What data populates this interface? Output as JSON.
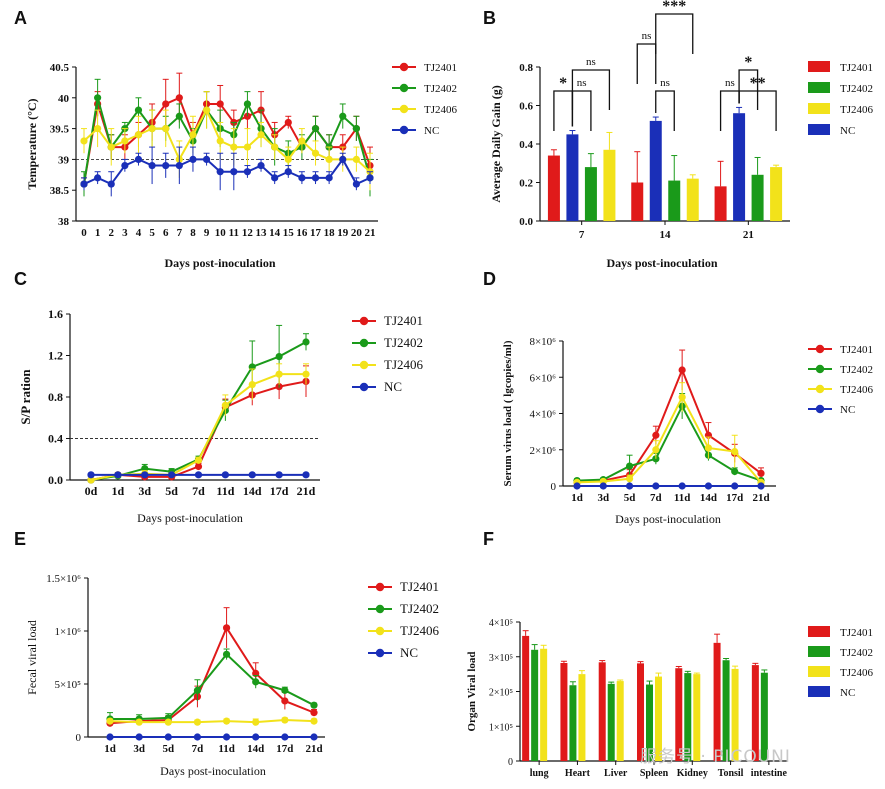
{
  "colors": {
    "TJ2401": "#e01a1a",
    "TJ2402": "#1a9a1a",
    "TJ2406": "#f2e21a",
    "NC": "#1a2fb8"
  },
  "watermark": "服务号 · PICOUNI",
  "chart_data": [
    {
      "id": "A",
      "panel_label": "A",
      "type": "line",
      "xlabel": "Days post-inoculation",
      "ylabel": "Temperature (°C)",
      "ylim": [
        38.0,
        40.5
      ],
      "yticks": [
        38.0,
        38.5,
        39.0,
        39.5,
        40.0,
        40.5
      ],
      "categories": [
        "0",
        "1",
        "2",
        "3",
        "4",
        "5",
        "6",
        "7",
        "8",
        "9",
        "10",
        "11",
        "12",
        "13",
        "14",
        "15",
        "16",
        "17",
        "18",
        "19",
        "20",
        "21"
      ],
      "threshold": 39.0,
      "legend": "right",
      "series": [
        {
          "name": "TJ2401",
          "values": [
            38.6,
            39.9,
            39.2,
            39.2,
            39.4,
            39.6,
            39.9,
            40.0,
            39.4,
            39.9,
            39.9,
            39.6,
            39.7,
            39.8,
            39.4,
            39.6,
            39.2,
            39.5,
            39.2,
            39.2,
            39.5,
            38.9
          ],
          "errors": [
            0.1,
            0.2,
            0.2,
            0.2,
            0.2,
            0.3,
            0.4,
            0.4,
            0.2,
            0.2,
            0.3,
            0.2,
            0.2,
            0.3,
            0.2,
            0.1,
            0.1,
            0.2,
            0.2,
            0.2,
            0.2,
            0.3
          ]
        },
        {
          "name": "TJ2402",
          "values": [
            38.6,
            40.0,
            39.2,
            39.5,
            39.8,
            39.5,
            39.5,
            39.7,
            39.3,
            39.8,
            39.5,
            39.4,
            39.9,
            39.5,
            39.2,
            39.1,
            39.2,
            39.5,
            39.2,
            39.7,
            39.5,
            38.7
          ],
          "errors": [
            0.2,
            0.3,
            0.2,
            0.1,
            0.2,
            0.3,
            0.2,
            0.2,
            0.2,
            0.3,
            0.3,
            0.2,
            0.2,
            0.3,
            0.3,
            0.2,
            0.2,
            0.2,
            0.2,
            0.2,
            0.2,
            0.3
          ]
        },
        {
          "name": "TJ2406",
          "values": [
            39.3,
            39.5,
            39.2,
            39.3,
            39.4,
            39.5,
            39.5,
            39.0,
            39.4,
            39.8,
            39.3,
            39.2,
            39.2,
            39.4,
            39.2,
            39.0,
            39.3,
            39.1,
            39.0,
            39.0,
            39.0,
            38.8
          ],
          "errors": [
            0.2,
            0.3,
            0.3,
            0.2,
            0.3,
            0.3,
            0.3,
            0.3,
            0.3,
            0.3,
            0.3,
            0.3,
            0.3,
            0.2,
            0.2,
            0.2,
            0.2,
            0.2,
            0.2,
            0.2,
            0.2,
            0.3
          ]
        },
        {
          "name": "NC",
          "values": [
            38.6,
            38.7,
            38.6,
            38.9,
            39.0,
            38.9,
            38.9,
            38.9,
            39.0,
            39.0,
            38.8,
            38.8,
            38.8,
            38.9,
            38.7,
            38.8,
            38.7,
            38.7,
            38.7,
            39.0,
            38.6,
            38.7
          ],
          "errors": [
            0.1,
            0.1,
            0.2,
            0.1,
            0.1,
            0.3,
            0.2,
            0.3,
            0.2,
            0.1,
            0.3,
            0.3,
            0.1,
            0.1,
            0.1,
            0.1,
            0.1,
            0.1,
            0.1,
            0.1,
            0.1,
            0.1
          ]
        }
      ]
    },
    {
      "id": "B",
      "panel_label": "B",
      "type": "bar",
      "xlabel": "Days post-inoculation",
      "ylabel": "Average Daily Gain (g)",
      "ylim": [
        0,
        0.8
      ],
      "yticks": [
        0.0,
        0.2,
        0.4,
        0.6,
        0.8
      ],
      "categories": [
        "7",
        "14",
        "21"
      ],
      "legend": "right",
      "series": [
        {
          "name": "TJ2401",
          "values": [
            0.34,
            0.2,
            0.18
          ],
          "errors": [
            0.03,
            0.16,
            0.13
          ]
        },
        {
          "name": "NC",
          "values": [
            0.45,
            0.52,
            0.56
          ],
          "errors": [
            0.02,
            0.02,
            0.03
          ]
        },
        {
          "name": "TJ2402",
          "values": [
            0.28,
            0.21,
            0.24
          ],
          "errors": [
            0.07,
            0.13,
            0.09
          ]
        },
        {
          "name": "TJ2406",
          "values": [
            0.37,
            0.22,
            0.28
          ],
          "errors": [
            0.09,
            0.02,
            0.01
          ]
        }
      ],
      "legend_order": [
        "TJ2401",
        "TJ2402",
        "TJ2406",
        "NC"
      ],
      "significance": [
        {
          "group": 0,
          "a": 0,
          "b": 1,
          "label": "*",
          "level": 0
        },
        {
          "group": 0,
          "a": 1,
          "b": 2,
          "label": "ns",
          "level": 0
        },
        {
          "group": 0,
          "a": 1,
          "b": 3,
          "label": "ns",
          "level": 1
        },
        {
          "group": 1,
          "a": 0,
          "b": 1,
          "label": "ns",
          "level": 2
        },
        {
          "group": 1,
          "a": 1,
          "b": 2,
          "label": "ns",
          "level": 0
        },
        {
          "group": 1,
          "a": 1,
          "b": 3,
          "label": "***",
          "level": 3
        },
        {
          "group": 2,
          "a": 0,
          "b": 1,
          "label": "ns",
          "level": 0
        },
        {
          "group": 2,
          "a": 1,
          "b": 2,
          "label": "*",
          "level": 1
        },
        {
          "group": 2,
          "a": 1,
          "b": 3,
          "label": "**",
          "level": 0
        }
      ]
    },
    {
      "id": "C",
      "panel_label": "C",
      "type": "line",
      "xlabel": "Days post-inoculation",
      "ylabel": "S/P ration",
      "ylim": [
        0,
        1.6
      ],
      "yticks": [
        0.0,
        0.4,
        0.8,
        1.2,
        1.6
      ],
      "categories": [
        "0d",
        "1d",
        "3d",
        "5d",
        "7d",
        "11d",
        "14d",
        "17d",
        "21d"
      ],
      "threshold": 0.4,
      "legend": "right",
      "series": [
        {
          "name": "TJ2401",
          "values": [
            0.0,
            0.05,
            0.03,
            0.03,
            0.13,
            0.7,
            0.82,
            0.9,
            0.95
          ],
          "errors": [
            0.01,
            0.02,
            0.02,
            0.02,
            0.03,
            0.08,
            0.1,
            0.12,
            0.15
          ]
        },
        {
          "name": "TJ2402",
          "values": [
            0.0,
            0.04,
            0.11,
            0.08,
            0.2,
            0.67,
            1.09,
            1.19,
            1.33
          ],
          "errors": [
            0.01,
            0.02,
            0.04,
            0.03,
            0.03,
            0.1,
            0.25,
            0.3,
            0.08
          ]
        },
        {
          "name": "TJ2406",
          "values": [
            0.0,
            0.05,
            0.06,
            0.05,
            0.19,
            0.72,
            0.92,
            1.02,
            1.02
          ],
          "errors": [
            0.01,
            0.02,
            0.03,
            0.02,
            0.03,
            0.1,
            0.15,
            0.1,
            0.1
          ]
        },
        {
          "name": "NC",
          "values": [
            0.05,
            0.05,
            0.05,
            0.05,
            0.05,
            0.05,
            0.05,
            0.05,
            0.05
          ],
          "errors": [
            0,
            0,
            0,
            0,
            0,
            0,
            0,
            0,
            0
          ]
        }
      ]
    },
    {
      "id": "D",
      "panel_label": "D",
      "type": "line",
      "xlabel": "Days post-inoculation",
      "ylabel": "Serum virus load ( lgcopies/ml)",
      "ylim": [
        0,
        8000000
      ],
      "yticks": [
        0,
        2000000,
        4000000,
        6000000,
        8000000
      ],
      "ytick_labels": [
        "0",
        "2×10⁶",
        "4×10⁶",
        "6×10⁶",
        "8×10⁶"
      ],
      "categories": [
        "1d",
        "3d",
        "5d",
        "7d",
        "11d",
        "14d",
        "17d",
        "21d"
      ],
      "legend": "right",
      "series": [
        {
          "name": "TJ2401",
          "values": [
            200000,
            300000,
            600000,
            2800000,
            6400000,
            2800000,
            1800000,
            700000
          ],
          "errors": [
            100000,
            100000,
            300000,
            500000,
            1100000,
            700000,
            500000,
            300000
          ]
        },
        {
          "name": "TJ2402",
          "values": [
            300000,
            350000,
            1100000,
            1500000,
            4400000,
            1700000,
            800000,
            300000
          ],
          "errors": [
            100000,
            100000,
            600000,
            300000,
            700000,
            300000,
            200000,
            100000
          ]
        },
        {
          "name": "TJ2406",
          "values": [
            200000,
            250000,
            400000,
            2000000,
            4900000,
            2100000,
            1900000,
            200000
          ],
          "errors": [
            100000,
            100000,
            200000,
            500000,
            800000,
            600000,
            900000,
            100000
          ]
        },
        {
          "name": "NC",
          "values": [
            0,
            0,
            0,
            0,
            0,
            0,
            0,
            0
          ],
          "errors": [
            0,
            0,
            0,
            0,
            0,
            0,
            0,
            0
          ]
        }
      ]
    },
    {
      "id": "E",
      "panel_label": "E",
      "type": "line",
      "xlabel": "Days post-inoculation",
      "ylabel": "Fecal viral load",
      "ylim": [
        0,
        1500000
      ],
      "yticks": [
        0,
        500000,
        1000000,
        1500000
      ],
      "ytick_labels": [
        "0",
        "5×10⁵",
        "1×10⁶",
        "1.5×10⁶"
      ],
      "categories": [
        "1d",
        "3d",
        "5d",
        "7d",
        "11d",
        "14d",
        "17d",
        "21d"
      ],
      "legend": "right",
      "series": [
        {
          "name": "TJ2401",
          "values": [
            130000,
            150000,
            160000,
            380000,
            1030000,
            600000,
            340000,
            230000
          ],
          "errors": [
            30000,
            30000,
            40000,
            100000,
            190000,
            100000,
            80000,
            30000
          ]
        },
        {
          "name": "TJ2402",
          "values": [
            170000,
            170000,
            180000,
            440000,
            780000,
            520000,
            440000,
            300000
          ],
          "errors": [
            60000,
            40000,
            40000,
            100000,
            50000,
            60000,
            30000,
            20000
          ]
        },
        {
          "name": "TJ2406",
          "values": [
            150000,
            140000,
            140000,
            140000,
            150000,
            140000,
            160000,
            150000
          ],
          "errors": [
            20000,
            20000,
            20000,
            20000,
            20000,
            30000,
            20000,
            20000
          ]
        },
        {
          "name": "NC",
          "values": [
            0,
            0,
            0,
            0,
            0,
            0,
            0,
            0
          ],
          "errors": [
            0,
            0,
            0,
            0,
            0,
            0,
            0,
            0
          ]
        }
      ]
    },
    {
      "id": "F",
      "panel_label": "F",
      "type": "bar",
      "xlabel": "",
      "ylabel": "Organ Viral load",
      "ylim": [
        0,
        400000
      ],
      "yticks": [
        0,
        100000,
        200000,
        300000,
        400000
      ],
      "ytick_labels": [
        "0",
        "1×10⁵",
        "2×10⁵",
        "3×10⁵",
        "4×10⁵"
      ],
      "categories": [
        "lung",
        "Heart",
        "Liver",
        "Spleen",
        "Kidney",
        "Tonsil",
        "intestine"
      ],
      "legend": "right",
      "series": [
        {
          "name": "TJ2401",
          "values": [
            360000,
            282000,
            284000,
            281000,
            267000,
            340000,
            276000
          ],
          "errors": [
            15000,
            5000,
            5000,
            5000,
            5000,
            25000,
            5000
          ]
        },
        {
          "name": "TJ2402",
          "values": [
            320000,
            218000,
            222000,
            220000,
            253000,
            290000,
            254000
          ],
          "errors": [
            15000,
            10000,
            5000,
            10000,
            5000,
            5000,
            8000
          ]
        },
        {
          "name": "TJ2406",
          "values": [
            323000,
            250000,
            230000,
            243000,
            250000,
            265000,
            0
          ],
          "errors": [
            10000,
            10000,
            3000,
            10000,
            3000,
            8000,
            0
          ]
        },
        {
          "name": "NC",
          "values": [
            0,
            0,
            0,
            0,
            0,
            0,
            0
          ],
          "errors": [
            0,
            0,
            0,
            0,
            0,
            0,
            0
          ]
        }
      ],
      "legend_order": [
        "TJ2401",
        "TJ2402",
        "TJ2406",
        "NC"
      ]
    }
  ]
}
